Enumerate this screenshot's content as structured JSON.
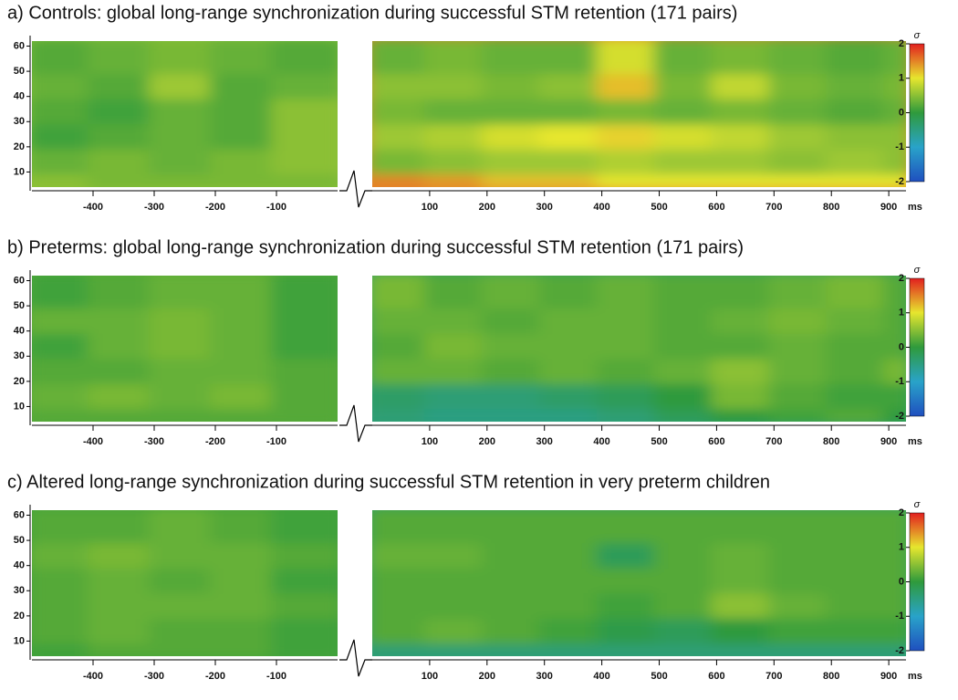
{
  "chart_data": [
    {
      "type": "heatmap",
      "title": "a) Controls: global long-range synchronization during successful STM retention (171 pairs)",
      "ylim": [
        4,
        62
      ],
      "yticks": [
        10,
        20,
        30,
        40,
        50,
        60
      ],
      "x_unit": "ms",
      "colors": [
        "#1f4fbf",
        "#29a3c9",
        "#2f9a3c",
        "#e6e62e",
        "#e21f1f"
      ],
      "colorbar": {
        "label": "σ",
        "lim": [
          -2,
          2
        ],
        "ticks": [
          2,
          1,
          0,
          -1,
          -2
        ]
      },
      "pre": {
        "xlim": [
          -500,
          0
        ],
        "xticks": [
          -400,
          -300,
          -200,
          -100
        ],
        "z": [
          [
            0.5,
            0.4,
            0.4,
            0.4,
            0.4
          ],
          [
            0.3,
            0.4,
            0.3,
            0.4,
            0.5
          ],
          [
            0.1,
            0.2,
            0.3,
            0.2,
            0.5
          ],
          [
            0.2,
            0.1,
            0.3,
            0.2,
            0.5
          ],
          [
            0.3,
            0.2,
            0.6,
            0.2,
            0.3
          ],
          [
            0.2,
            0.3,
            0.4,
            0.3,
            0.2
          ]
        ]
      },
      "post": {
        "xlim": [
          0,
          930
        ],
        "xticks": [
          100,
          200,
          300,
          400,
          500,
          600,
          700,
          800,
          900
        ],
        "z": [
          [
            1.5,
            1.4,
            1.2,
            1.2,
            1.0,
            1.0,
            1.0,
            1.0,
            1.0,
            1.0
          ],
          [
            0.4,
            0.5,
            0.6,
            0.6,
            0.7,
            0.6,
            0.6,
            0.5,
            0.6,
            0.5
          ],
          [
            0.6,
            0.7,
            0.9,
            1.0,
            1.1,
            0.9,
            0.8,
            0.6,
            0.5,
            0.5
          ],
          [
            0.4,
            0.3,
            0.3,
            0.3,
            0.4,
            0.3,
            0.4,
            0.3,
            0.2,
            0.3
          ],
          [
            0.5,
            0.5,
            0.4,
            0.5,
            1.2,
            0.4,
            0.8,
            0.4,
            0.3,
            0.4
          ],
          [
            0.3,
            0.4,
            0.3,
            0.3,
            0.9,
            0.3,
            0.4,
            0.3,
            0.2,
            0.3
          ]
        ]
      }
    },
    {
      "type": "heatmap",
      "title": "b) Preterms: global long-range synchronization during successful STM retention (171 pairs)",
      "ylim": [
        4,
        62
      ],
      "yticks": [
        10,
        20,
        30,
        40,
        50,
        60
      ],
      "x_unit": "ms",
      "colors": [
        "#1f4fbf",
        "#29a3c9",
        "#2f9a3c",
        "#e6e62e",
        "#e21f1f"
      ],
      "colorbar": {
        "label": "σ",
        "lim": [
          -2,
          2
        ],
        "ticks": [
          2,
          1,
          0,
          -1,
          -2
        ]
      },
      "pre": {
        "xlim": [
          -500,
          0
        ],
        "xticks": [
          -400,
          -300,
          -200,
          -100
        ],
        "z": [
          [
            0.2,
            0.2,
            0.2,
            0.2,
            0.2
          ],
          [
            0.3,
            0.4,
            0.3,
            0.4,
            0.2
          ],
          [
            0.2,
            0.2,
            0.3,
            0.3,
            0.2
          ],
          [
            0.1,
            0.3,
            0.4,
            0.3,
            0.1
          ],
          [
            0.3,
            0.3,
            0.4,
            0.3,
            0.1
          ],
          [
            0.1,
            0.2,
            0.3,
            0.3,
            0.1
          ]
        ]
      },
      "post": {
        "xlim": [
          0,
          930
        ],
        "xticks": [
          100,
          200,
          300,
          400,
          500,
          600,
          700,
          800,
          900
        ],
        "z": [
          [
            -0.4,
            -0.5,
            -0.5,
            -0.5,
            -0.4,
            -0.2,
            0.0,
            0.1,
            0.2,
            0.0
          ],
          [
            -0.3,
            -0.4,
            -0.4,
            -0.3,
            -0.2,
            0.0,
            0.4,
            0.2,
            0.1,
            0.1
          ],
          [
            0.3,
            0.3,
            0.2,
            0.3,
            0.2,
            0.3,
            0.5,
            0.3,
            0.2,
            0.4
          ],
          [
            0.2,
            0.4,
            0.3,
            0.3,
            0.3,
            0.2,
            0.2,
            0.3,
            0.2,
            0.2
          ],
          [
            0.3,
            0.3,
            0.2,
            0.3,
            0.3,
            0.2,
            0.3,
            0.4,
            0.3,
            0.2
          ],
          [
            0.4,
            0.2,
            0.3,
            0.2,
            0.3,
            0.2,
            0.2,
            0.3,
            0.4,
            0.2
          ]
        ]
      }
    },
    {
      "type": "heatmap",
      "title": "c) Altered long-range synchronization during successful STM retention in very preterm children",
      "ylim": [
        4,
        62
      ],
      "yticks": [
        10,
        20,
        30,
        40,
        50,
        60
      ],
      "x_unit": "ms",
      "colors": [
        "#1f4fbf",
        "#29a3c9",
        "#2f9a3c",
        "#e6e62e",
        "#e21f1f"
      ],
      "colorbar": {
        "label": "σ",
        "lim": [
          -2,
          2
        ],
        "ticks": [
          2,
          1,
          0,
          -1,
          -2
        ]
      },
      "pre": {
        "xlim": [
          -500,
          0
        ],
        "xticks": [
          -400,
          -300,
          -200,
          -100
        ],
        "z": [
          [
            0.1,
            0.2,
            0.2,
            0.2,
            0.1
          ],
          [
            0.2,
            0.3,
            0.2,
            0.2,
            0.1
          ],
          [
            0.2,
            0.3,
            0.3,
            0.3,
            0.2
          ],
          [
            0.2,
            0.3,
            0.2,
            0.3,
            0.1
          ],
          [
            0.3,
            0.4,
            0.3,
            0.3,
            0.2
          ],
          [
            0.2,
            0.2,
            0.3,
            0.2,
            0.1
          ]
        ]
      },
      "post": {
        "xlim": [
          0,
          930
        ],
        "xticks": [
          100,
          200,
          300,
          400,
          500,
          600,
          700,
          800,
          900
        ],
        "z": [
          [
            -0.4,
            -0.4,
            -0.4,
            -0.4,
            -0.4,
            -0.4,
            -0.4,
            -0.4,
            -0.4,
            -0.4
          ],
          [
            0.2,
            0.3,
            0.2,
            0.1,
            -0.1,
            -0.2,
            0.0,
            0.1,
            0.1,
            0.1
          ],
          [
            0.2,
            0.2,
            0.2,
            0.2,
            0.1,
            0.2,
            0.5,
            0.3,
            0.2,
            0.2
          ],
          [
            0.2,
            0.2,
            0.2,
            0.2,
            0.2,
            0.2,
            0.3,
            0.2,
            0.2,
            0.2
          ],
          [
            0.3,
            0.3,
            0.2,
            0.2,
            -0.2,
            0.2,
            0.3,
            0.2,
            0.2,
            0.2
          ],
          [
            0.2,
            0.2,
            0.2,
            0.2,
            0.2,
            0.2,
            0.2,
            0.2,
            0.2,
            0.2
          ]
        ]
      }
    }
  ]
}
